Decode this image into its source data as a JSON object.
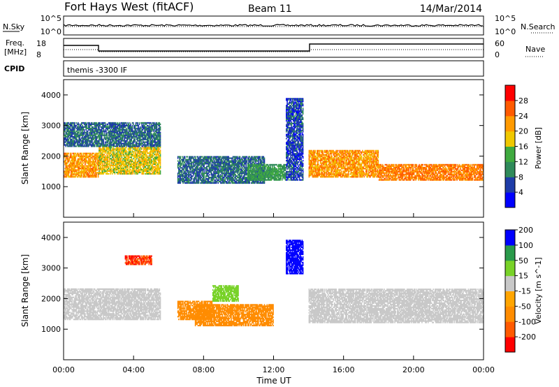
{
  "header": {
    "station": "Fort Hays West (fitACF)",
    "beam": "Beam 11",
    "date": "14/Mar/2014"
  },
  "strip_labels": {
    "nsky": "N.Sky",
    "nsky_ticks": [
      "10^5",
      "10^0"
    ],
    "nsearch": "N.Search",
    "nsearch_ticks": [
      "10^5",
      "10^0"
    ],
    "freq": "Freq.",
    "freq_unit": "[MHz]",
    "freq_ticks": [
      "18",
      "8"
    ],
    "nave": "Nave",
    "nave_ticks": [
      "60",
      "0"
    ],
    "cpid": "CPID",
    "cpid_value": "themis -3300 IF"
  },
  "colors": {
    "power": [
      "#0000ff",
      "#1e3ca8",
      "#2f8a5a",
      "#3faa3f",
      "#f0c800",
      "#ff9a00",
      "#ff5a00",
      "#ff0000"
    ],
    "velocity": [
      "#ff0000",
      "#ff5a00",
      "#ff8c00",
      "#ffa500",
      "#c8c8c8",
      "#78d228",
      "#2a9a4a",
      "#0000ff"
    ]
  },
  "chart_data": [
    {
      "type": "heatmap",
      "name": "power",
      "ylabel": "Slant Range [km]",
      "yticks": [
        "1000",
        "2000",
        "3000",
        "4000"
      ],
      "ylim": [
        0,
        4500
      ],
      "xlim": [
        0,
        24
      ],
      "colorbar_label": "Power [dB]",
      "colorbar_ticks": [
        "4",
        "8",
        "12",
        "16",
        "20",
        "24",
        "28"
      ],
      "bands": [
        {
          "t0": 0.0,
          "t1": 2.0,
          "r0": 1300,
          "r1": 2100,
          "v": 22
        },
        {
          "t0": 2.0,
          "t1": 5.5,
          "r0": 1400,
          "r1": 2300,
          "v": 18
        },
        {
          "t0": 0.0,
          "t1": 5.5,
          "r0": 2300,
          "r1": 3100,
          "v": 8
        },
        {
          "t0": 6.5,
          "t1": 11.5,
          "r0": 1100,
          "r1": 2000,
          "v": 8
        },
        {
          "t0": 10.5,
          "t1": 12.7,
          "r0": 1200,
          "r1": 1700,
          "v": 12
        },
        {
          "t0": 12.7,
          "t1": 13.7,
          "r0": 1200,
          "r1": 3900,
          "v": 6
        },
        {
          "t0": 14.0,
          "t1": 18.0,
          "r0": 1300,
          "r1": 2200,
          "v": 22
        },
        {
          "t0": 18.0,
          "t1": 24.0,
          "r0": 1200,
          "r1": 1700,
          "v": 24
        }
      ]
    },
    {
      "type": "heatmap",
      "name": "velocity",
      "ylabel": "Slant Range [km]",
      "yticks": [
        "1000",
        "2000",
        "3000",
        "4000"
      ],
      "ylim": [
        0,
        4500
      ],
      "xlim": [
        0,
        24
      ],
      "xlabel": "Time UT",
      "xticks": [
        "00:00",
        "04:00",
        "08:00",
        "12:00",
        "16:00",
        "20:00",
        "00:00"
      ],
      "colorbar_label": "Velocity [m s^-1]",
      "colorbar_ticks": [
        "-200",
        "-100",
        "-50",
        "-15",
        "15",
        "50",
        "100",
        "200"
      ],
      "bands": [
        {
          "t0": 0.0,
          "t1": 5.5,
          "r0": 1300,
          "r1": 2300,
          "v": 0
        },
        {
          "t0": 3.5,
          "t1": 5.0,
          "r0": 3100,
          "r1": 3400,
          "v": -200
        },
        {
          "t0": 6.5,
          "t1": 8.5,
          "r0": 1300,
          "r1": 1900,
          "v": -80
        },
        {
          "t0": 8.5,
          "t1": 10.0,
          "r0": 1900,
          "r1": 2400,
          "v": 30
        },
        {
          "t0": 7.5,
          "t1": 12.0,
          "r0": 1100,
          "r1": 1800,
          "v": -60
        },
        {
          "t0": 12.7,
          "t1": 13.7,
          "r0": 2800,
          "r1": 3900,
          "v": 200
        },
        {
          "t0": 14.0,
          "t1": 24.0,
          "r0": 1200,
          "r1": 2300,
          "v": 0
        }
      ]
    }
  ]
}
